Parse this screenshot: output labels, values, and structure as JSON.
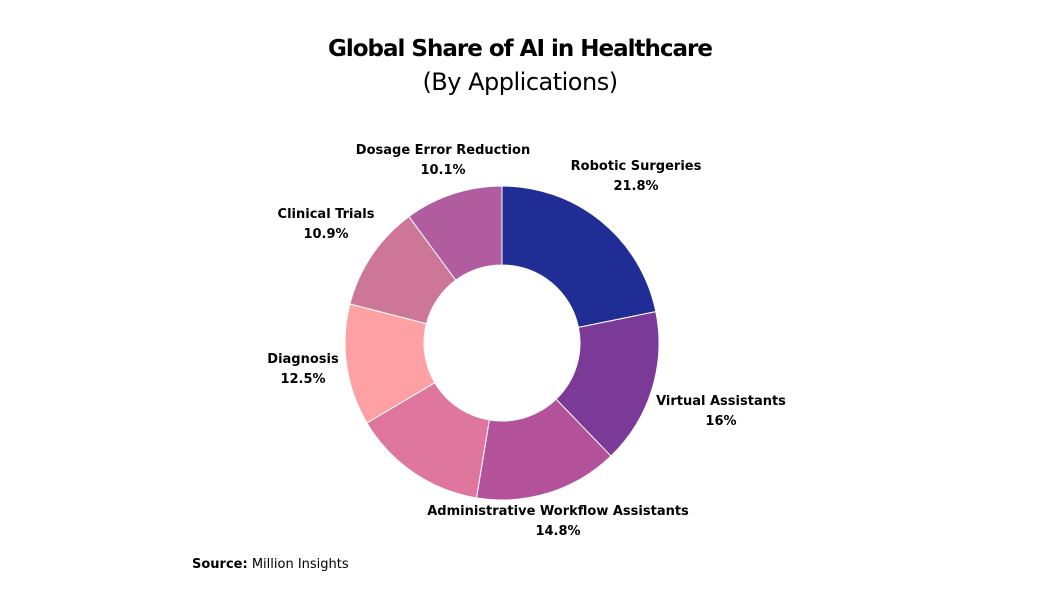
{
  "chart_data": {
    "type": "pie",
    "donut": true,
    "title": "Global Share of AI in Healthcare",
    "subtitle": "(By Applications)",
    "slices": [
      {
        "label": "Robotic Surgeries",
        "value": 21.8,
        "value_text": "21.8%",
        "color": "#1f2d94"
      },
      {
        "label": "Virtual Assistants",
        "value": 16,
        "value_text": "16%",
        "color": "#7b3a98"
      },
      {
        "label": "Administrative Workflow Assistants",
        "value": 14.8,
        "value_text": "14.8%",
        "color": "#b3529a"
      },
      {
        "label": "",
        "value": 13.9,
        "value_text": "",
        "color": "#df769e"
      },
      {
        "label": "Diagnosis",
        "value": 12.5,
        "value_text": "12.5%",
        "color": "#ffa0a5"
      },
      {
        "label": "Clinical Trials",
        "value": 10.9,
        "value_text": "10.9%",
        "color": "#cd7697"
      },
      {
        "label": "Dosage Error Reduction",
        "value": 10.1,
        "value_text": "10.1%",
        "color": "#b05c9e"
      }
    ],
    "start": "top",
    "direction": "clockwise"
  },
  "source": {
    "label": "Source:",
    "text": "Million Insights"
  }
}
